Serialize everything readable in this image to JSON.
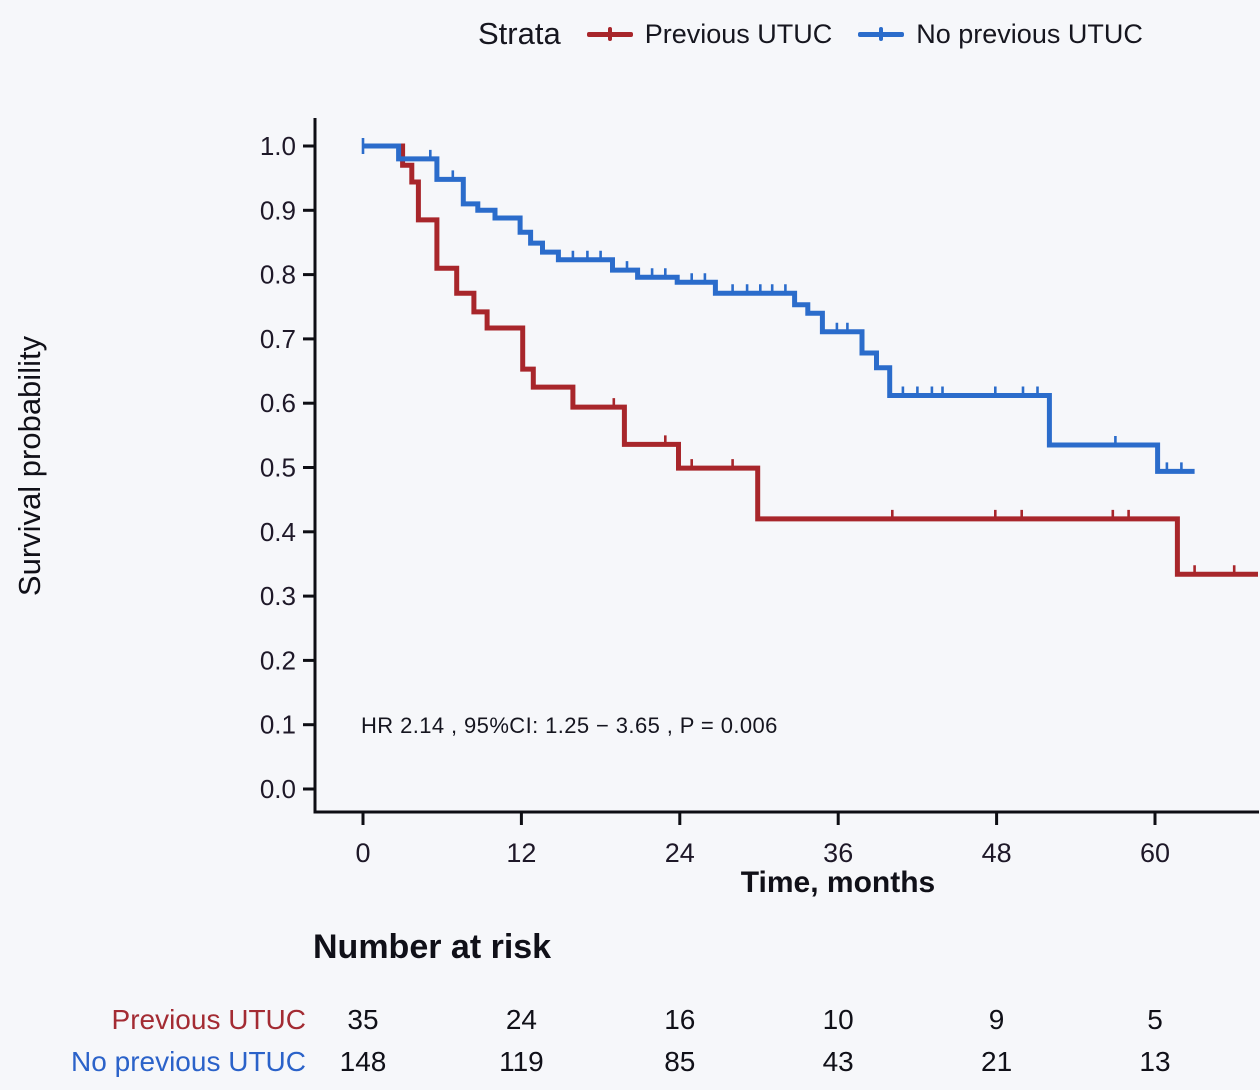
{
  "page": {
    "background": "#f6f7fa"
  },
  "legend": {
    "title": "Strata",
    "items": [
      {
        "label": "Previous UTUC",
        "color": "#A8262B"
      },
      {
        "label": "No previous UTUC",
        "color": "#2B6CCB"
      }
    ]
  },
  "chart_data": {
    "type": "line",
    "subtype": "kaplan-meier-step-curves",
    "title": "",
    "xlabel": "Time, months",
    "ylabel": "Survival probability",
    "xlim": [
      0,
      68
    ],
    "ylim": [
      0.0,
      1.0
    ],
    "xticks": [
      0,
      12,
      24,
      36,
      48,
      60
    ],
    "yticks": [
      "0.0",
      "0.1",
      "0.2",
      "0.3",
      "0.4",
      "0.5",
      "0.6",
      "0.7",
      "0.8",
      "0.9",
      "1.0"
    ],
    "grid": false,
    "legend_position": "top",
    "annotation": "HR  2.14 , 95%CI:  1.25 − 3.65 ,  P = 0.006",
    "series": [
      {
        "name": "Previous UTUC",
        "color": "#A8262B",
        "end_time": 67.8,
        "steps": [
          [
            0,
            1.0
          ],
          [
            3,
            0.97
          ],
          [
            3.7,
            0.944
          ],
          [
            4.2,
            0.885
          ],
          [
            5.6,
            0.81
          ],
          [
            7.1,
            0.771
          ],
          [
            8.4,
            0.742
          ],
          [
            9.4,
            0.717
          ],
          [
            12.1,
            0.653
          ],
          [
            12.9,
            0.625
          ],
          [
            15.9,
            0.594
          ],
          [
            19.8,
            0.536
          ],
          [
            23.9,
            0.499
          ],
          [
            29.9,
            0.42
          ],
          [
            61.7,
            0.334
          ]
        ],
        "censor_marks": [
          [
            19,
            0.594
          ],
          [
            22.9,
            0.536
          ],
          [
            24.9,
            0.499
          ],
          [
            28,
            0.499
          ],
          [
            40.1,
            0.42
          ],
          [
            47.9,
            0.42
          ],
          [
            49.9,
            0.42
          ],
          [
            56.8,
            0.42
          ],
          [
            58,
            0.42
          ],
          [
            63,
            0.334
          ],
          [
            66,
            0.334
          ]
        ]
      },
      {
        "name": "No previous UTUC",
        "color": "#2B6CCB",
        "end_time": 63.0,
        "steps": [
          [
            0,
            1.0
          ],
          [
            2.7,
            0.98
          ],
          [
            5.6,
            0.948
          ],
          [
            7.6,
            0.91
          ],
          [
            8.7,
            0.9
          ],
          [
            10,
            0.888
          ],
          [
            11.9,
            0.866
          ],
          [
            12.7,
            0.849
          ],
          [
            13.6,
            0.835
          ],
          [
            14.8,
            0.823
          ],
          [
            18.9,
            0.807
          ],
          [
            20.8,
            0.796
          ],
          [
            23.8,
            0.788
          ],
          [
            26.7,
            0.771
          ],
          [
            32.7,
            0.753
          ],
          [
            33.7,
            0.74
          ],
          [
            34.8,
            0.711
          ],
          [
            37.8,
            0.678
          ],
          [
            38.9,
            0.655
          ],
          [
            39.9,
            0.612
          ],
          [
            52,
            0.535
          ],
          [
            60.2,
            0.494
          ]
        ],
        "censor_marks": [
          [
            5.1,
            0.98
          ],
          [
            6.8,
            0.948
          ],
          [
            15.9,
            0.823
          ],
          [
            17,
            0.823
          ],
          [
            18,
            0.823
          ],
          [
            20,
            0.807
          ],
          [
            21.9,
            0.796
          ],
          [
            22.9,
            0.796
          ],
          [
            24.9,
            0.788
          ],
          [
            25.9,
            0.788
          ],
          [
            28,
            0.771
          ],
          [
            29.1,
            0.771
          ],
          [
            30.1,
            0.771
          ],
          [
            31,
            0.771
          ],
          [
            32,
            0.771
          ],
          [
            35.9,
            0.711
          ],
          [
            36.7,
            0.711
          ],
          [
            40.9,
            0.612
          ],
          [
            42,
            0.612
          ],
          [
            43.1,
            0.612
          ],
          [
            43.9,
            0.612
          ],
          [
            47.9,
            0.612
          ],
          [
            50,
            0.612
          ],
          [
            51.1,
            0.612
          ],
          [
            57,
            0.535
          ],
          [
            60.9,
            0.494
          ],
          [
            62,
            0.494
          ]
        ],
        "start_cap_tick": [
          0,
          1.0
        ]
      }
    ],
    "risk_table": {
      "title": "Number at risk",
      "times": [
        0,
        12,
        24,
        36,
        48,
        60
      ],
      "rows": [
        {
          "label": "Previous UTUC",
          "color": "#A8262B",
          "counts": [
            35,
            24,
            16,
            10,
            9,
            5
          ]
        },
        {
          "label": "No previous UTUC",
          "color": "#2B6CCB",
          "counts": [
            148,
            119,
            85,
            43,
            21,
            13
          ]
        }
      ]
    }
  }
}
